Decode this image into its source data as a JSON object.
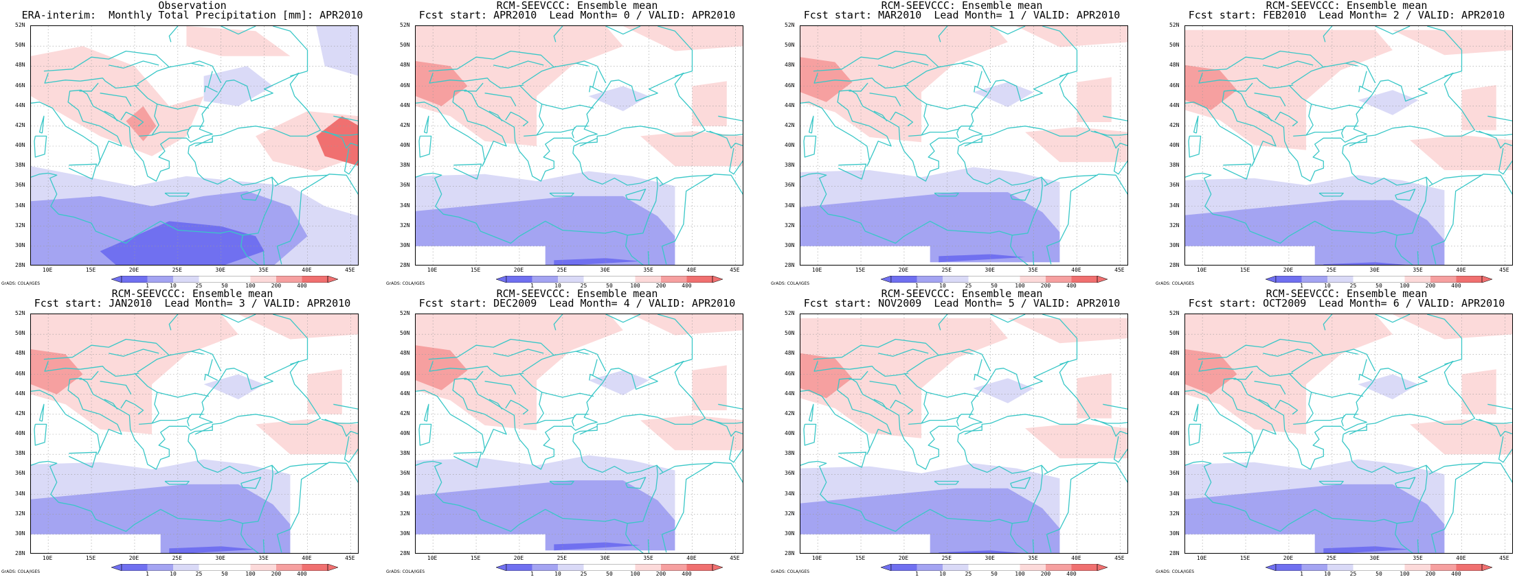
{
  "colors": {
    "coast": "#39c7c7",
    "grid": "#9a9a9a",
    "neg1": "#dadaf7",
    "neg2": "#a4a4f2",
    "neg3": "#7070f0",
    "pos1": "#fcdada",
    "pos2": "#f6a0a0",
    "pos3": "#f07070"
  },
  "axes": {
    "y_labels": [
      "52N",
      "50N",
      "48N",
      "46N",
      "44N",
      "42N",
      "40N",
      "38N",
      "36N",
      "34N",
      "32N",
      "30N",
      "28N"
    ],
    "x_labels": [
      "10E",
      "15E",
      "20E",
      "25E",
      "30E",
      "35E",
      "40E",
      "45E"
    ],
    "lat_range": [
      28,
      52
    ],
    "lon_range": [
      8,
      46
    ]
  },
  "colorbar": {
    "labels": [
      "1",
      "10",
      "25",
      "50",
      "100",
      "200",
      "400"
    ]
  },
  "credit": "GrADS: COLA/IGES",
  "panels": [
    {
      "title1": "Observation",
      "title2": "ERA-interim:  Monthly Total Precipitation [mm]: APR2010"
    },
    {
      "title1": "RCM-SEEVCCC: Ensemble mean",
      "title2": "Fcst start: APR2010  Lead Month= 0 / VALID: APR2010"
    },
    {
      "title1": "RCM-SEEVCCC: Ensemble mean",
      "title2": "Fcst start: MAR2010  Lead Month= 1 / VALID: APR2010"
    },
    {
      "title1": "RCM-SEEVCCC: Ensemble mean",
      "title2": "Fcst start: FEB2010  Lead Month= 2 / VALID: APR2010"
    },
    {
      "title1": "RCM-SEEVCCC: Ensemble mean",
      "title2": "Fcst start: JAN2010  Lead Month= 3 / VALID: APR2010"
    },
    {
      "title1": "RCM-SEEVCCC: Ensemble mean",
      "title2": "Fcst start: DEC2009  Lead Month= 4 / VALID: APR2010"
    },
    {
      "title1": "RCM-SEEVCCC: Ensemble mean",
      "title2": "Fcst start: NOV2009  Lead Month= 5 / VALID: APR2010"
    },
    {
      "title1": "RCM-SEEVCCC: Ensemble mean",
      "title2": "Fcst start: OCT2009  Lead Month= 6 / VALID: APR2010"
    }
  ]
}
